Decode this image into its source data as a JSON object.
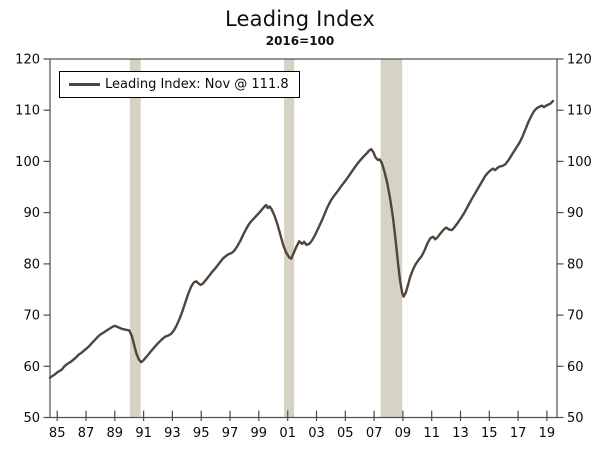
{
  "page": {
    "title": "Leading Index",
    "subtitle": "2016=100"
  },
  "legend": {
    "label": "Leading Index: Nov @ 111.8"
  },
  "colors": {
    "line": "#4f453c",
    "recession_band": "#d6d3c4",
    "frame": "#4d4d4d",
    "text": "#0a0a0a",
    "background": "#ffffff"
  },
  "chart_data": {
    "type": "line",
    "title": "Leading Index",
    "subtitle": "2016=100",
    "xlabel": "",
    "ylabel": "",
    "grid": false,
    "legend_position": "top-left",
    "xlim": [
      1985,
      2020.2
    ],
    "ylim": [
      50,
      120
    ],
    "y_ticks": [
      50,
      60,
      70,
      80,
      90,
      100,
      110,
      120
    ],
    "y_axis_sides": [
      "left",
      "right"
    ],
    "x_ticks": [
      {
        "year": 1985.5,
        "label": "85"
      },
      {
        "year": 1987.5,
        "label": "87"
      },
      {
        "year": 1989.5,
        "label": "89"
      },
      {
        "year": 1991.5,
        "label": "91"
      },
      {
        "year": 1993.5,
        "label": "93"
      },
      {
        "year": 1995.5,
        "label": "95"
      },
      {
        "year": 1997.5,
        "label": "97"
      },
      {
        "year": 1999.5,
        "label": "99"
      },
      {
        "year": 2001.5,
        "label": "01"
      },
      {
        "year": 2003.5,
        "label": "03"
      },
      {
        "year": 2005.5,
        "label": "05"
      },
      {
        "year": 2007.5,
        "label": "07"
      },
      {
        "year": 2009.5,
        "label": "09"
      },
      {
        "year": 2011.5,
        "label": "11"
      },
      {
        "year": 2013.5,
        "label": "13"
      },
      {
        "year": 2015.5,
        "label": "15"
      },
      {
        "year": 2017.5,
        "label": "17"
      },
      {
        "year": 2019.5,
        "label": "19"
      }
    ],
    "recession_bands": [
      [
        1990.55,
        1991.3
      ],
      [
        2001.25,
        2001.95
      ],
      [
        2007.95,
        2009.45
      ]
    ],
    "series": [
      {
        "name": "Leading Index: Nov @ 111.8",
        "last_point_label": "Nov @ 111.8",
        "points": [
          [
            1985.0,
            57.8
          ],
          [
            1985.17,
            58.1
          ],
          [
            1985.33,
            58.4
          ],
          [
            1985.5,
            58.8
          ],
          [
            1985.67,
            59.1
          ],
          [
            1985.83,
            59.4
          ],
          [
            1986.0,
            60.0
          ],
          [
            1986.17,
            60.4
          ],
          [
            1986.33,
            60.7
          ],
          [
            1986.5,
            61.0
          ],
          [
            1986.67,
            61.4
          ],
          [
            1986.83,
            61.8
          ],
          [
            1987.0,
            62.3
          ],
          [
            1987.17,
            62.6
          ],
          [
            1987.33,
            63.0
          ],
          [
            1987.5,
            63.4
          ],
          [
            1987.67,
            63.8
          ],
          [
            1987.83,
            64.3
          ],
          [
            1988.0,
            64.8
          ],
          [
            1988.17,
            65.3
          ],
          [
            1988.33,
            65.8
          ],
          [
            1988.5,
            66.2
          ],
          [
            1988.67,
            66.5
          ],
          [
            1988.83,
            66.8
          ],
          [
            1989.0,
            67.1
          ],
          [
            1989.17,
            67.4
          ],
          [
            1989.33,
            67.7
          ],
          [
            1989.5,
            67.9
          ],
          [
            1989.67,
            67.7
          ],
          [
            1989.83,
            67.5
          ],
          [
            1990.0,
            67.3
          ],
          [
            1990.17,
            67.2
          ],
          [
            1990.33,
            67.1
          ],
          [
            1990.5,
            67.0
          ],
          [
            1990.67,
            66.0
          ],
          [
            1990.83,
            64.3
          ],
          [
            1991.0,
            62.5
          ],
          [
            1991.17,
            61.3
          ],
          [
            1991.33,
            60.8
          ],
          [
            1991.5,
            61.2
          ],
          [
            1991.67,
            61.8
          ],
          [
            1991.83,
            62.3
          ],
          [
            1992.0,
            62.9
          ],
          [
            1992.25,
            63.7
          ],
          [
            1992.5,
            64.5
          ],
          [
            1992.75,
            65.2
          ],
          [
            1993.0,
            65.8
          ],
          [
            1993.2,
            66.0
          ],
          [
            1993.4,
            66.3
          ],
          [
            1993.6,
            67.0
          ],
          [
            1993.8,
            68.0
          ],
          [
            1994.0,
            69.3
          ],
          [
            1994.2,
            70.8
          ],
          [
            1994.4,
            72.5
          ],
          [
            1994.6,
            74.2
          ],
          [
            1994.8,
            75.6
          ],
          [
            1995.0,
            76.4
          ],
          [
            1995.15,
            76.6
          ],
          [
            1995.3,
            76.2
          ],
          [
            1995.45,
            75.9
          ],
          [
            1995.6,
            76.1
          ],
          [
            1995.8,
            76.8
          ],
          [
            1996.0,
            77.5
          ],
          [
            1996.25,
            78.4
          ],
          [
            1996.5,
            79.2
          ],
          [
            1996.75,
            80.1
          ],
          [
            1997.0,
            81.0
          ],
          [
            1997.2,
            81.5
          ],
          [
            1997.4,
            81.9
          ],
          [
            1997.6,
            82.1
          ],
          [
            1997.8,
            82.6
          ],
          [
            1998.0,
            83.4
          ],
          [
            1998.2,
            84.4
          ],
          [
            1998.4,
            85.6
          ],
          [
            1998.6,
            86.7
          ],
          [
            1998.8,
            87.7
          ],
          [
            1999.0,
            88.4
          ],
          [
            1999.2,
            89.0
          ],
          [
            1999.4,
            89.6
          ],
          [
            1999.6,
            90.2
          ],
          [
            1999.8,
            90.9
          ],
          [
            2000.0,
            91.5
          ],
          [
            2000.12,
            90.9
          ],
          [
            2000.25,
            91.2
          ],
          [
            2000.4,
            90.6
          ],
          [
            2000.6,
            89.3
          ],
          [
            2000.8,
            87.6
          ],
          [
            2001.0,
            85.6
          ],
          [
            2001.2,
            83.6
          ],
          [
            2001.4,
            82.2
          ],
          [
            2001.6,
            81.3
          ],
          [
            2001.75,
            81.0
          ],
          [
            2001.9,
            82.0
          ],
          [
            2002.1,
            83.3
          ],
          [
            2002.3,
            84.4
          ],
          [
            2002.5,
            83.9
          ],
          [
            2002.65,
            84.3
          ],
          [
            2002.8,
            83.7
          ],
          [
            2003.0,
            83.9
          ],
          [
            2003.2,
            84.6
          ],
          [
            2003.4,
            85.6
          ],
          [
            2003.6,
            86.8
          ],
          [
            2003.8,
            88.0
          ],
          [
            2004.0,
            89.3
          ],
          [
            2004.25,
            91.0
          ],
          [
            2004.5,
            92.4
          ],
          [
            2004.75,
            93.4
          ],
          [
            2005.0,
            94.3
          ],
          [
            2005.25,
            95.3
          ],
          [
            2005.5,
            96.2
          ],
          [
            2005.75,
            97.2
          ],
          [
            2006.0,
            98.2
          ],
          [
            2006.25,
            99.2
          ],
          [
            2006.5,
            100.1
          ],
          [
            2006.75,
            100.9
          ],
          [
            2007.0,
            101.6
          ],
          [
            2007.15,
            102.1
          ],
          [
            2007.3,
            102.4
          ],
          [
            2007.45,
            101.8
          ],
          [
            2007.6,
            100.8
          ],
          [
            2007.75,
            100.3
          ],
          [
            2007.9,
            100.4
          ],
          [
            2008.05,
            99.6
          ],
          [
            2008.2,
            98.2
          ],
          [
            2008.4,
            96.0
          ],
          [
            2008.6,
            93.0
          ],
          [
            2008.8,
            89.3
          ],
          [
            2009.0,
            84.5
          ],
          [
            2009.15,
            80.5
          ],
          [
            2009.3,
            76.8
          ],
          [
            2009.45,
            74.3
          ],
          [
            2009.55,
            73.6
          ],
          [
            2009.7,
            74.4
          ],
          [
            2009.85,
            75.8
          ],
          [
            2010.0,
            77.4
          ],
          [
            2010.2,
            78.9
          ],
          [
            2010.4,
            80.0
          ],
          [
            2010.6,
            80.8
          ],
          [
            2010.8,
            81.5
          ],
          [
            2011.0,
            82.6
          ],
          [
            2011.2,
            84.0
          ],
          [
            2011.4,
            85.0
          ],
          [
            2011.6,
            85.3
          ],
          [
            2011.75,
            84.8
          ],
          [
            2011.9,
            85.2
          ],
          [
            2012.1,
            85.9
          ],
          [
            2012.3,
            86.6
          ],
          [
            2012.5,
            87.1
          ],
          [
            2012.7,
            86.7
          ],
          [
            2012.9,
            86.6
          ],
          [
            2013.1,
            87.2
          ],
          [
            2013.3,
            88.0
          ],
          [
            2013.5,
            88.8
          ],
          [
            2013.75,
            89.9
          ],
          [
            2014.0,
            91.2
          ],
          [
            2014.25,
            92.5
          ],
          [
            2014.5,
            93.7
          ],
          [
            2014.75,
            94.9
          ],
          [
            2015.0,
            96.1
          ],
          [
            2015.2,
            97.1
          ],
          [
            2015.4,
            97.8
          ],
          [
            2015.6,
            98.3
          ],
          [
            2015.75,
            98.6
          ],
          [
            2015.9,
            98.3
          ],
          [
            2016.05,
            98.7
          ],
          [
            2016.2,
            99.0
          ],
          [
            2016.4,
            99.1
          ],
          [
            2016.6,
            99.4
          ],
          [
            2016.8,
            100.1
          ],
          [
            2017.0,
            101.0
          ],
          [
            2017.2,
            101.9
          ],
          [
            2017.4,
            102.8
          ],
          [
            2017.6,
            103.7
          ],
          [
            2017.8,
            104.8
          ],
          [
            2018.0,
            106.2
          ],
          [
            2018.2,
            107.6
          ],
          [
            2018.4,
            108.8
          ],
          [
            2018.6,
            109.8
          ],
          [
            2018.8,
            110.4
          ],
          [
            2019.0,
            110.7
          ],
          [
            2019.15,
            110.9
          ],
          [
            2019.3,
            110.6
          ],
          [
            2019.45,
            110.9
          ],
          [
            2019.6,
            111.1
          ],
          [
            2019.75,
            111.3
          ],
          [
            2019.92,
            111.8
          ]
        ]
      }
    ]
  }
}
